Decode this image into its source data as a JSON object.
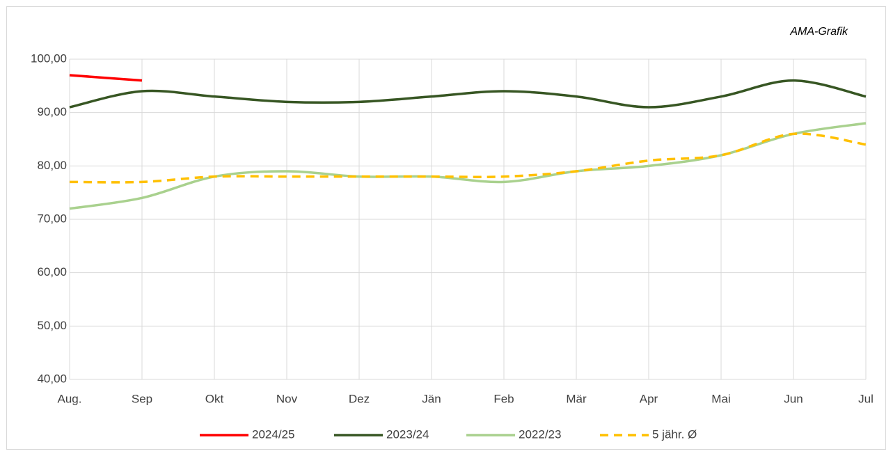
{
  "chart_data": {
    "type": "line",
    "annotation": "AMA-Grafik",
    "categories": [
      "Aug.",
      "Sep",
      "Okt",
      "Nov",
      "Dez",
      "Jän",
      "Feb",
      "Mär",
      "Apr",
      "Mai",
      "Jun",
      "Jul"
    ],
    "series": [
      {
        "name": "2024/25",
        "color": "#ff0000",
        "values": [
          97,
          96,
          null,
          null,
          null,
          null,
          null,
          null,
          null,
          null,
          null,
          null
        ]
      },
      {
        "name": "2023/24",
        "color": "#375623",
        "values": [
          91,
          94,
          93,
          92,
          92,
          93,
          94,
          93,
          91,
          93,
          96,
          93
        ]
      },
      {
        "name": "2022/23",
        "color": "#a9d18e",
        "values": [
          72,
          74,
          78,
          79,
          78,
          78,
          77,
          79,
          80,
          82,
          86,
          88
        ]
      },
      {
        "name": "5 jähr. Ø",
        "color": "#ffc000",
        "style": "dashed",
        "values": [
          77,
          77,
          78,
          78,
          78,
          78,
          78,
          79,
          81,
          82,
          86,
          84
        ]
      }
    ],
    "ylim": [
      40,
      100
    ],
    "yticks": [
      {
        "value": 40,
        "label": "40,00"
      },
      {
        "value": 50,
        "label": "50,00"
      },
      {
        "value": 60,
        "label": "60,00"
      },
      {
        "value": 70,
        "label": "70,00"
      },
      {
        "value": 80,
        "label": "80,00"
      },
      {
        "value": 90,
        "label": "90,00"
      },
      {
        "value": 100,
        "label": "100,00"
      }
    ],
    "grid": true,
    "legend": "bottom"
  }
}
